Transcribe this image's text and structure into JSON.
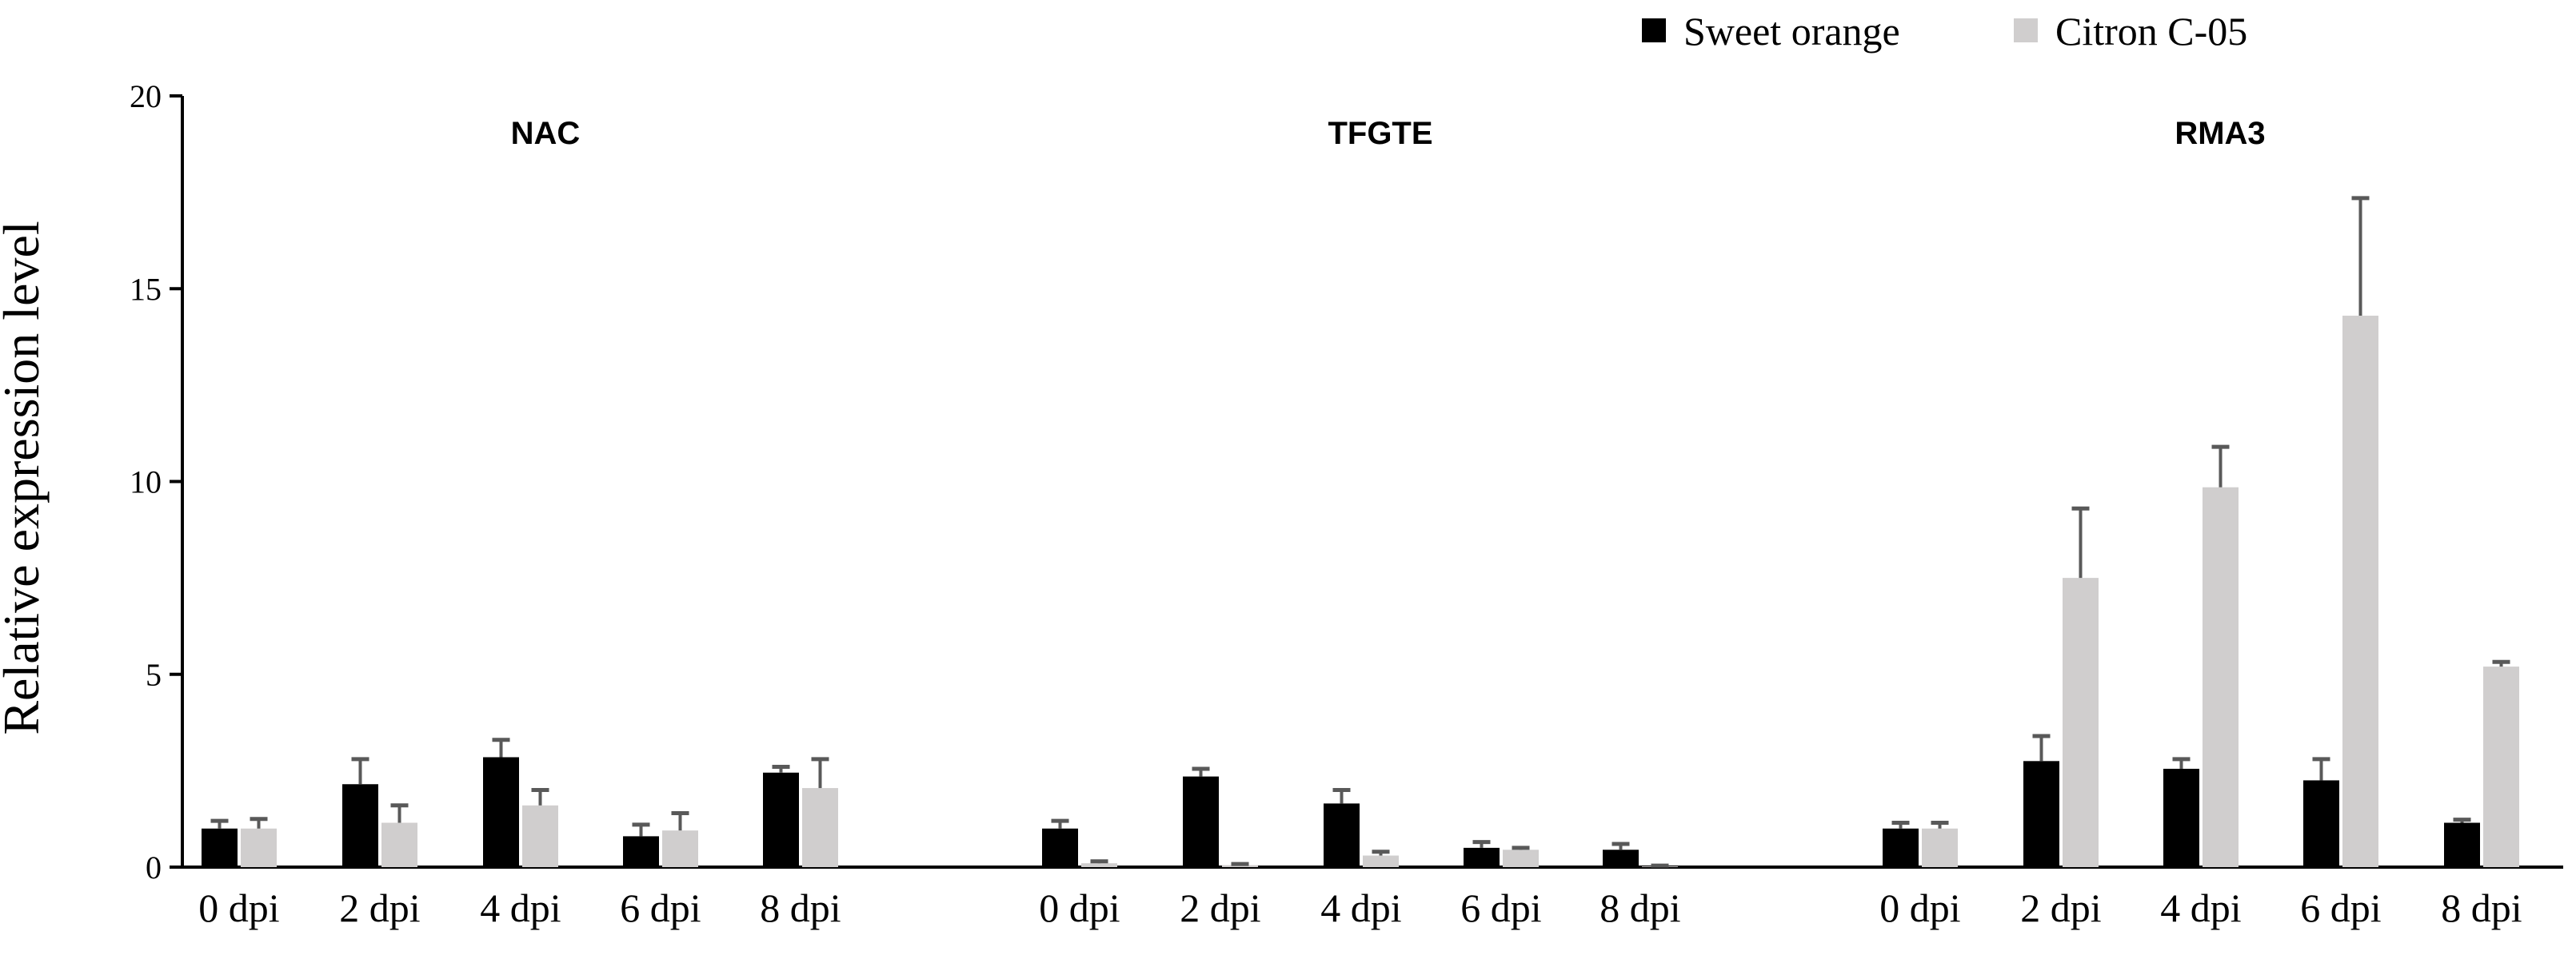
{
  "chart_data": {
    "type": "bar",
    "ylabel": "Relative expression level",
    "ylim": [
      0,
      20
    ],
    "yticks": [
      0,
      5,
      10,
      15,
      20
    ],
    "grid": false,
    "legend_position": "top-right",
    "colors": {
      "Sweet orange": "#000000",
      "Citron C-05": "#d0cece",
      "error_bar": "#595959"
    },
    "categories": [
      "0 dpi",
      "2 dpi",
      "4 dpi",
      "6 dpi",
      "8 dpi"
    ],
    "series_names": [
      "Sweet orange",
      "Citron C-05"
    ],
    "groups": [
      {
        "title": "NAC",
        "series": [
          {
            "name": "Sweet orange",
            "values": [
              1.0,
              2.15,
              2.85,
              0.8,
              2.45
            ],
            "errors": [
              0.2,
              0.65,
              0.45,
              0.3,
              0.15
            ]
          },
          {
            "name": "Citron C-05",
            "values": [
              1.0,
              1.15,
              1.6,
              0.95,
              2.05
            ],
            "errors": [
              0.25,
              0.45,
              0.4,
              0.45,
              0.75
            ]
          }
        ]
      },
      {
        "title": "TFGTE",
        "series": [
          {
            "name": "Sweet orange",
            "values": [
              1.0,
              2.35,
              1.65,
              0.5,
              0.45
            ],
            "errors": [
              0.2,
              0.2,
              0.35,
              0.15,
              0.15
            ]
          },
          {
            "name": "Citron C-05",
            "values": [
              0.1,
              0.05,
              0.3,
              0.45,
              0.02
            ],
            "errors": [
              0.05,
              0.03,
              0.1,
              0.05,
              0.02
            ]
          }
        ]
      },
      {
        "title": "RMA3",
        "series": [
          {
            "name": "Sweet orange",
            "values": [
              1.0,
              2.75,
              2.55,
              2.25,
              1.15
            ],
            "errors": [
              0.15,
              0.65,
              0.25,
              0.55,
              0.08
            ]
          },
          {
            "name": "Citron C-05",
            "values": [
              1.0,
              7.5,
              9.85,
              14.3,
              5.2
            ],
            "errors": [
              0.15,
              1.8,
              1.05,
              3.05,
              0.12
            ]
          }
        ]
      }
    ]
  }
}
